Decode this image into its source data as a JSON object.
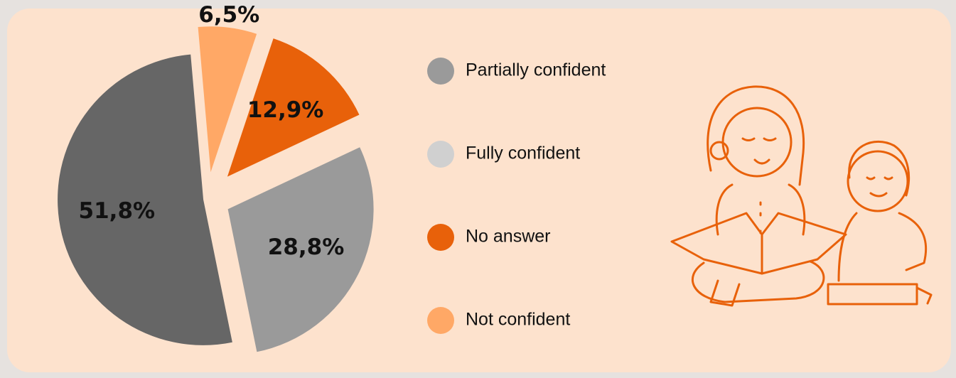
{
  "chart_data": {
    "type": "pie",
    "values": [
      6.5,
      12.9,
      28.8,
      51.8
    ],
    "value_labels": [
      "6,5%",
      "12,9%",
      "28,8%",
      "51,8%"
    ],
    "colors": [
      "#ffa866",
      "#e8610a",
      "#9a9a9a",
      "#666666"
    ],
    "legend": [
      {
        "name": "Partially confident",
        "color": "#9a9a9a"
      },
      {
        "name": "Fully confident",
        "color": "#d0d0d0"
      },
      {
        "name": "No answer",
        "color": "#e8610a"
      },
      {
        "name": "Not confident",
        "color": "#ffa866"
      }
    ]
  }
}
